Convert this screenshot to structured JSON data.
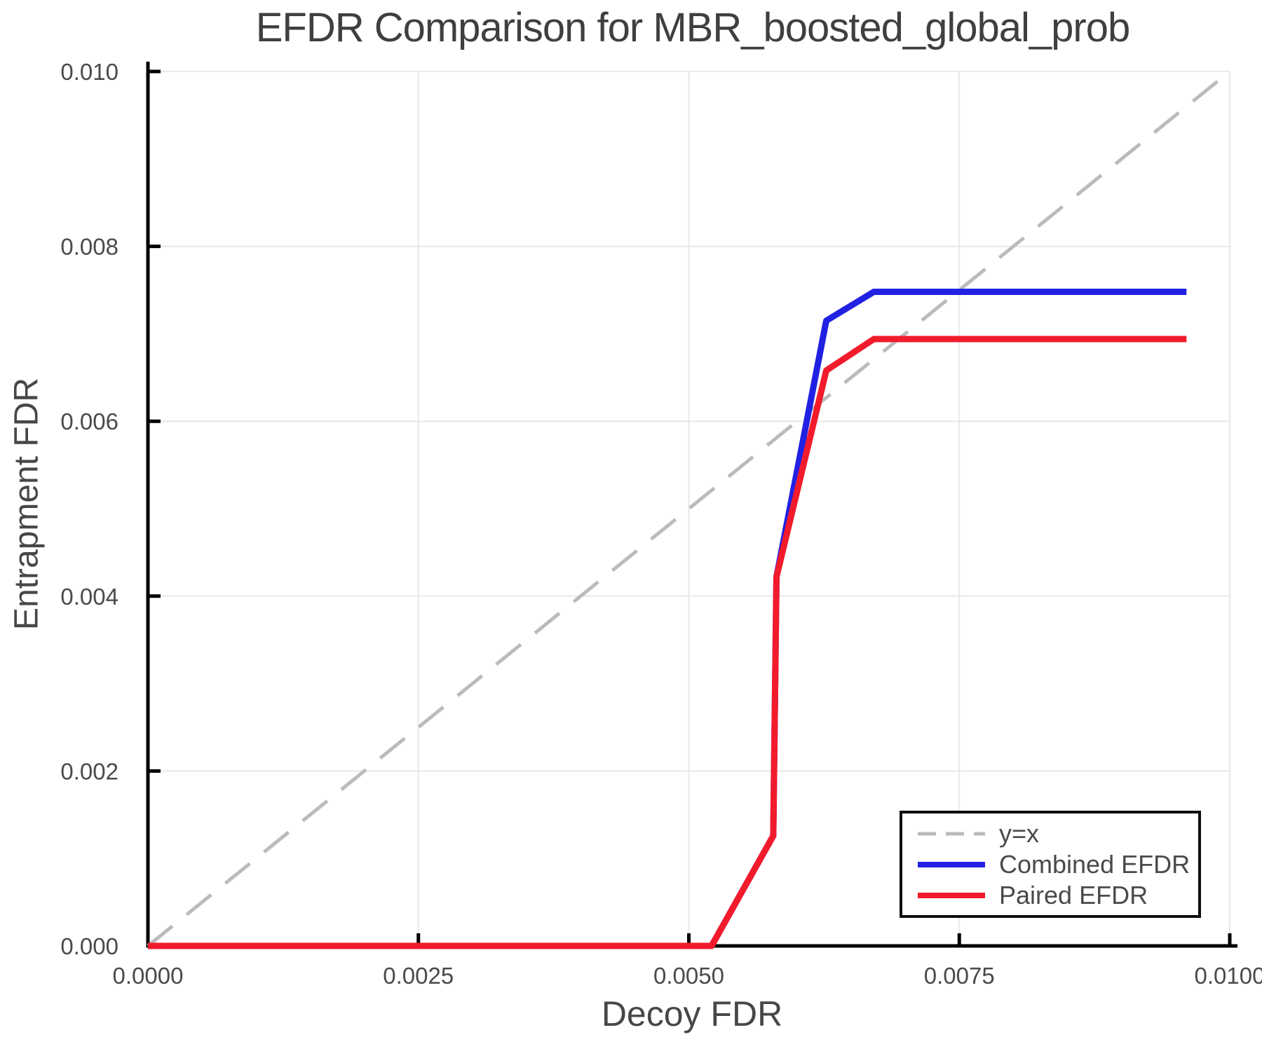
{
  "chart_data": {
    "type": "line",
    "title": "EFDR Comparison for MBR_boosted_global_prob",
    "xlabel": "Decoy FDR",
    "ylabel": "Entrapment FDR",
    "xlim": [
      0,
      0.01
    ],
    "ylim": [
      0,
      0.01
    ],
    "grid": true,
    "legend_position": "lower right",
    "x_ticks": {
      "values": [
        0,
        0.0025,
        0.005,
        0.0075,
        0.01
      ],
      "labels": [
        "0.0000",
        "0.0025",
        "0.0050",
        "0.0075",
        "0.0100"
      ]
    },
    "y_ticks": {
      "values": [
        0,
        0.002,
        0.004,
        0.006,
        0.008,
        0.01
      ],
      "labels": [
        "0.000",
        "0.002",
        "0.004",
        "0.006",
        "0.008",
        "0.010"
      ]
    },
    "series": [
      {
        "name": "y=x",
        "color": "#bbbbbb",
        "style": "dashed",
        "width": 5,
        "points": [
          [
            0,
            0
          ],
          [
            0.01,
            0.01
          ]
        ]
      },
      {
        "name": "Combined EFDR",
        "color": "#2121e3",
        "style": "solid",
        "width": 9,
        "points": [
          [
            0,
            0
          ],
          [
            0.00521,
            0
          ],
          [
            0.00578,
            0.00126
          ],
          [
            0.00581,
            0.00422
          ],
          [
            0.00627,
            0.00715
          ],
          [
            0.00671,
            0.00748
          ],
          [
            0.0096,
            0.00748
          ]
        ]
      },
      {
        "name": "Paired EFDR",
        "color": "#f21b2c",
        "style": "solid",
        "width": 9,
        "points": [
          [
            0,
            0
          ],
          [
            0.00521,
            0
          ],
          [
            0.00578,
            0.00126
          ],
          [
            0.00581,
            0.00422
          ],
          [
            0.00627,
            0.00658
          ],
          [
            0.00671,
            0.00694
          ],
          [
            0.0096,
            0.00694
          ]
        ]
      }
    ],
    "colors": {
      "grid": "#e8e8e8",
      "spine": "#000000",
      "tick_text": "#4a4a4a",
      "title_text": "#3f3f3f"
    }
  }
}
